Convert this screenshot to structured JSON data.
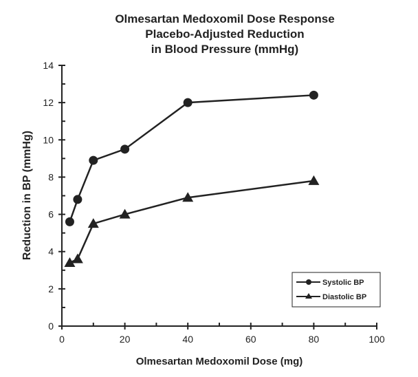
{
  "chart_data": {
    "type": "line",
    "title": [
      "Olmesartan Medoxomil Dose Response",
      "Placebo-Adjusted Reduction",
      "in Blood Pressure (mmHg)"
    ],
    "xlabel": "Olmesartan Medoxomil Dose (mg)",
    "ylabel": "Reduction in BP (mmHg)",
    "xlim": [
      0,
      100
    ],
    "ylim": [
      0,
      14
    ],
    "xticks": [
      0,
      20,
      40,
      60,
      80,
      100
    ],
    "yticks": [
      0,
      2,
      4,
      6,
      8,
      10,
      12,
      14
    ],
    "grid": false,
    "legend_position": "bottom-right",
    "series": [
      {
        "name": "Systolic BP",
        "marker": "circle",
        "x": [
          2.5,
          5,
          10,
          20,
          40,
          80
        ],
        "y": [
          5.6,
          6.8,
          8.9,
          9.5,
          12.0,
          12.4
        ]
      },
      {
        "name": "Diastolic BP",
        "marker": "triangle",
        "x": [
          2.5,
          5,
          10,
          20,
          40,
          80
        ],
        "y": [
          3.4,
          3.6,
          5.5,
          6.0,
          6.9,
          7.8
        ]
      }
    ],
    "color": "#222222"
  }
}
